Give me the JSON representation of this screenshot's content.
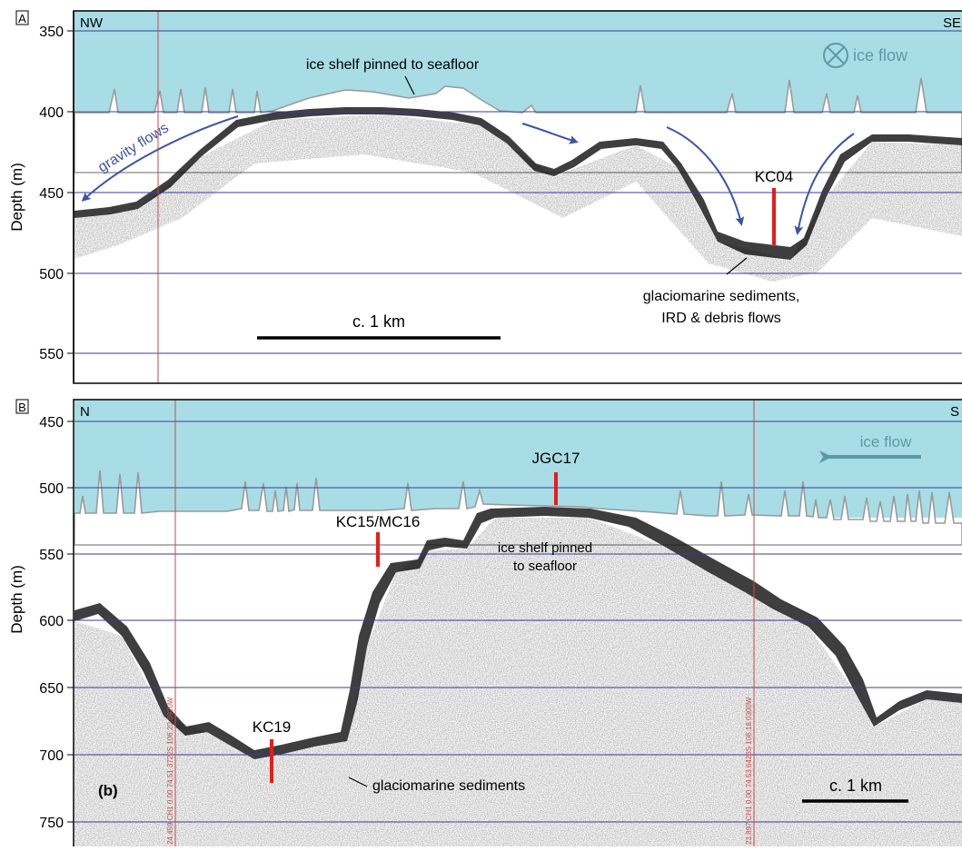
{
  "panel_a": {
    "letter": "A",
    "dir_left": "NW",
    "dir_right": "SE",
    "y_axis_label": "Depth (m)",
    "ticks": [
      "350",
      "400",
      "450",
      "500",
      "550"
    ],
    "labels": {
      "ice_shelf": "ice shelf pinned to seafloor",
      "ice_flow": "ice flow",
      "gravity_flows": "gravity flows",
      "core": "KC04",
      "sediments_line1": "glaciomarine sediments,",
      "sediments_line2": "IRD & debris flows",
      "scale": "c. 1 km"
    }
  },
  "panel_b": {
    "letter": "B",
    "dir_left": "N",
    "dir_right": "S",
    "y_axis_label": "Depth (m)",
    "ticks": [
      "450",
      "500",
      "550",
      "600",
      "650",
      "700",
      "750"
    ],
    "labels": {
      "ice_flow": "ice flow",
      "core_jgc17": "JGC17",
      "core_kc15": "KC15/MC16",
      "ice_shelf_line1": "ice shelf pinned",
      "ice_shelf_line2": "to seafloor",
      "core_kc19": "KC19",
      "sediments": "glaciomarine sediments",
      "subpanel": "(b)",
      "scale": "c. 1 km",
      "fix_left": "24.459 CH1 0.00 74.51.3722S 106.20.8920W",
      "fix_right": "23.897 CH1 0.00 74.53.6426S 106.18.0300W"
    }
  },
  "colors": {
    "ice": "#a8dde6",
    "gridline": "#3a3aa0",
    "core": "#e41e1e",
    "arrow": "#3b53a4",
    "ice_flow": "#5b9aa6"
  }
}
